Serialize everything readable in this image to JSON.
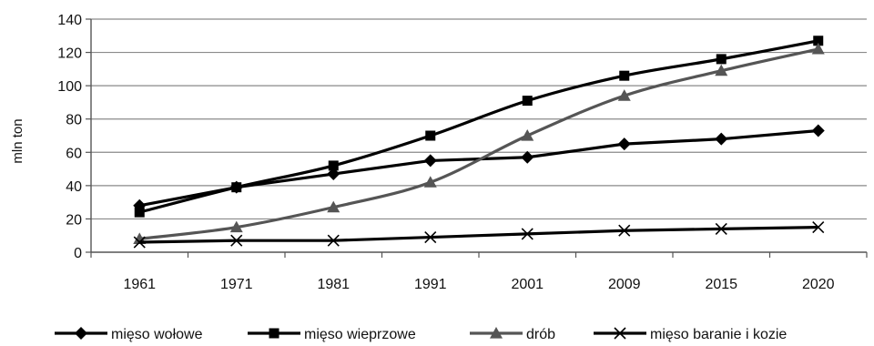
{
  "chart_data": {
    "type": "line",
    "categories": [
      "1961",
      "1971",
      "1981",
      "1991",
      "2001",
      "2009",
      "2015",
      "2020"
    ],
    "ylabel": "mln ton",
    "ylim": [
      0,
      140
    ],
    "yticks": [
      0,
      20,
      40,
      60,
      80,
      100,
      120,
      140
    ],
    "grid": true,
    "legend": "bottom",
    "series": [
      {
        "name": "mięso wołowe",
        "marker": "diamond",
        "color": "#000000",
        "smooth": false,
        "values": [
          28,
          39,
          47,
          55,
          57,
          65,
          68,
          73
        ]
      },
      {
        "name": "mięso wieprzowe",
        "marker": "square",
        "color": "#000000",
        "smooth": true,
        "values": [
          24,
          39,
          52,
          70,
          91,
          106,
          116,
          127
        ]
      },
      {
        "name": "drób",
        "marker": "triangle",
        "color": "#555555",
        "smooth": true,
        "values": [
          8,
          15,
          27,
          42,
          70,
          94,
          109,
          122
        ]
      },
      {
        "name": "mięso baranie i kozie",
        "marker": "x",
        "color": "#000000",
        "smooth": false,
        "values": [
          6,
          7,
          7,
          9,
          11,
          13,
          14,
          15
        ]
      }
    ]
  }
}
